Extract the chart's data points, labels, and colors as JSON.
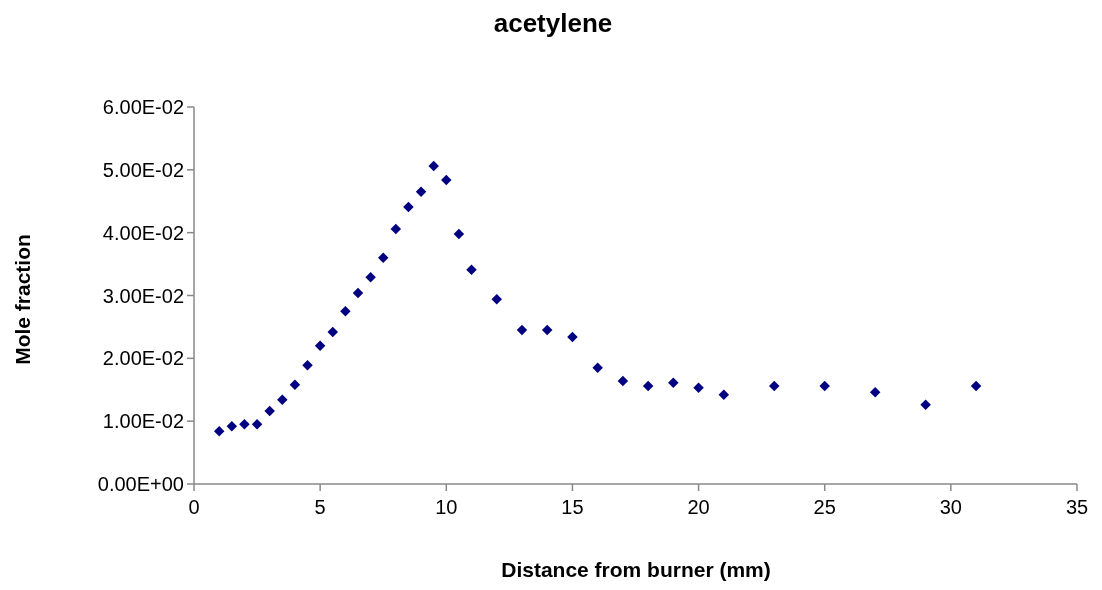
{
  "chart_data": {
    "type": "scatter",
    "title": "acetylene",
    "xlabel": "Distance from burner (mm)",
    "ylabel": "Mole fraction",
    "x": [
      1,
      1.5,
      2,
      2.5,
      3,
      3.5,
      4,
      4.5,
      5,
      5.5,
      6,
      6.5,
      7,
      7.5,
      8,
      8.5,
      9,
      9.5,
      10,
      10.5,
      11,
      12,
      13,
      14,
      15,
      16,
      17,
      18,
      19,
      20,
      21,
      23,
      25,
      27,
      29,
      31
    ],
    "series": [
      {
        "color": "#000080",
        "values": [
          0.0084,
          0.0092,
          0.0095,
          0.0095,
          0.0116,
          0.0134,
          0.0158,
          0.0189,
          0.022,
          0.0242,
          0.0275,
          0.0304,
          0.0329,
          0.036,
          0.0406,
          0.0441,
          0.0465,
          0.0506,
          0.0484,
          0.0398,
          0.0341,
          0.0294,
          0.0245,
          0.0245,
          0.0234,
          0.0185,
          0.0164,
          0.0156,
          0.0161,
          0.0153,
          0.0142,
          0.0156,
          0.0156,
          0.0146,
          0.0126,
          0.0156
        ]
      }
    ],
    "xlim": [
      0,
      35
    ],
    "xticks": [
      0,
      5,
      10,
      15,
      20,
      25,
      30,
      35
    ],
    "ylim": [
      0,
      0.06
    ],
    "yticks": [
      {
        "value": 0,
        "label": "0.00E+00"
      },
      {
        "value": 0.01,
        "label": "1.00E-02"
      },
      {
        "value": 0.02,
        "label": "2.00E-02"
      },
      {
        "value": 0.03,
        "label": "3.00E-02"
      },
      {
        "value": 0.04,
        "label": "4.00E-02"
      },
      {
        "value": 0.05,
        "label": "5.00E-02"
      },
      {
        "value": 0.06,
        "label": "6.00E-02"
      }
    ],
    "marker": "diamond",
    "grid": false
  }
}
